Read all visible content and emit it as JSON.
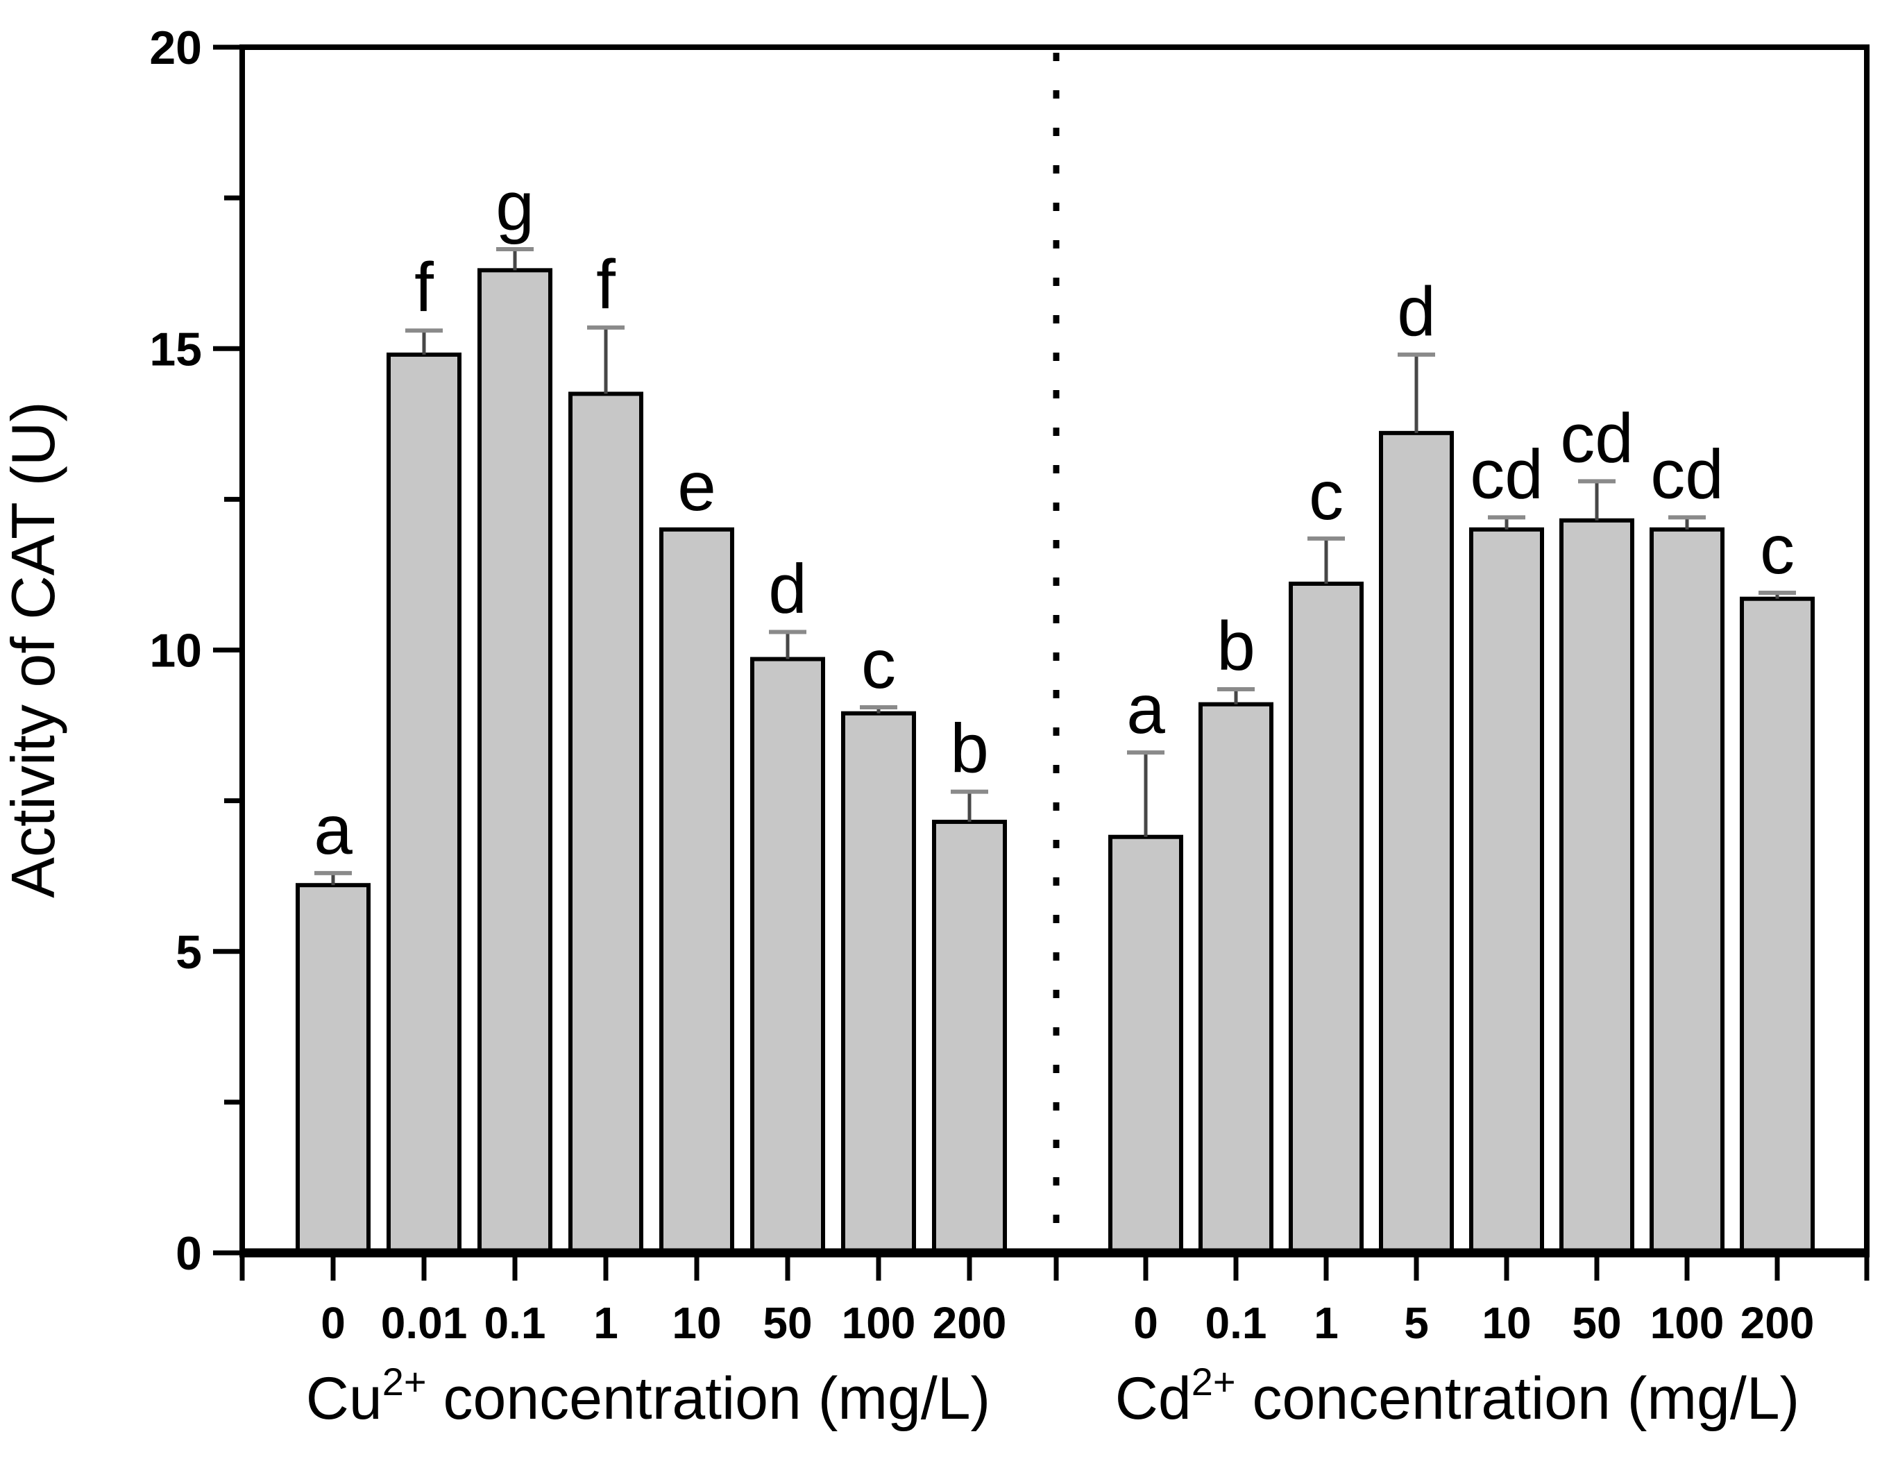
{
  "chart_data": {
    "type": "bar",
    "title": "",
    "ylabel": "Activity of CAT (U)",
    "ylim": [
      0,
      20
    ],
    "yticks_major": [
      0,
      5,
      10,
      15,
      20
    ],
    "yticks_minor": [
      2.5,
      7.5,
      12.5,
      17.5
    ],
    "grid": false,
    "legend": "none",
    "groups": [
      {
        "xlabel": "Cu2+ concentration (mg/L)",
        "xlabel_main": "Cu",
        "xlabel_sup": "2+",
        "xlabel_rest": " concentration (mg/L)",
        "categories": [
          "0",
          "0.01",
          "0.1",
          "1",
          "10",
          "50",
          "100",
          "200"
        ],
        "values": [
          6.1,
          14.9,
          16.3,
          14.25,
          12.0,
          9.85,
          8.95,
          7.15
        ],
        "errors": [
          0.2,
          0.4,
          0.35,
          1.1,
          0,
          0.45,
          0.1,
          0.5
        ],
        "letters": [
          "a",
          "f",
          "g",
          "f",
          "e",
          "d",
          "c",
          "b"
        ]
      },
      {
        "xlabel": "Cd2+ concentration (mg/L)",
        "xlabel_main": "Cd",
        "xlabel_sup": "2+",
        "xlabel_rest": " concentration (mg/L)",
        "categories": [
          "0",
          "0.1",
          "1",
          "5",
          "10",
          "50",
          "100",
          "200"
        ],
        "values": [
          6.9,
          9.1,
          11.1,
          13.6,
          12.0,
          12.15,
          12.0,
          10.85
        ],
        "errors": [
          1.4,
          0.25,
          0.75,
          1.3,
          0.2,
          0.65,
          0.2,
          0.1
        ],
        "letters": [
          "a",
          "b",
          "c",
          "d",
          "cd",
          "cd",
          "cd",
          "c"
        ]
      }
    ],
    "separator": "dotted-vertical-line",
    "colors": {
      "bar_fill": "#c7c7c7",
      "bar_stroke": "#000000",
      "error_stem": "#474747",
      "error_cap": "#8a8a8a",
      "axis": "#000000",
      "background": "#ffffff"
    }
  }
}
